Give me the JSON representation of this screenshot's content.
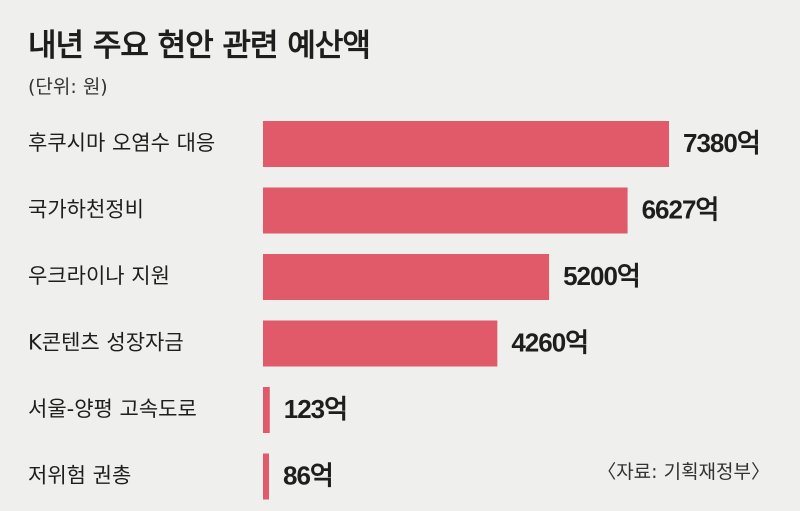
{
  "header": {
    "title": "내년 주요 현안 관련 예산액",
    "unit": "(단위: 원)"
  },
  "footer": {
    "source": "〈자료: 기획재정부〉"
  },
  "colors": {
    "bar": "#e05a6a",
    "text": "#1e1e1e",
    "background": "#efefed"
  },
  "chart_data": {
    "type": "bar",
    "orientation": "horizontal",
    "title": "내년 주요 현안 관련 예산액",
    "unit": "(단위: 원)",
    "categories": [
      "후쿠시마 오염수 대응",
      "국가하천정비",
      "우크라이나 지원",
      "K콘텐츠 성장자금",
      "서울-양평 고속도로",
      "저위험 권총"
    ],
    "values": [
      7380,
      6627,
      5200,
      4260,
      123,
      86
    ],
    "value_labels": [
      "7380억",
      "6627억",
      "5200억",
      "4260억",
      "123억",
      "86억"
    ],
    "xlim": [
      0,
      7380
    ],
    "grid": false,
    "legend": "none"
  }
}
